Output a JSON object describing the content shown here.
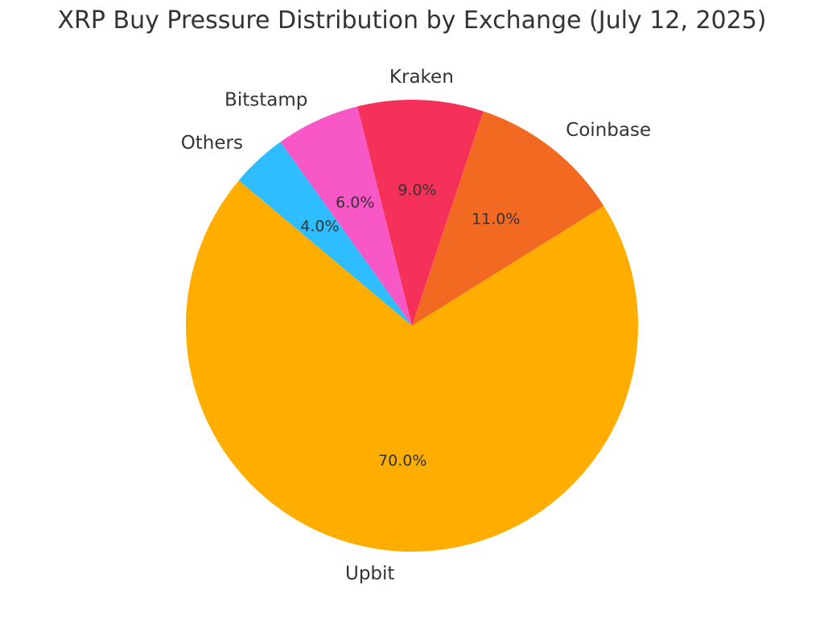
{
  "chart_data": {
    "type": "pie",
    "title": "XRP Buy Pressure Distribution by Exchange (July 12, 2025)",
    "categories": [
      "Upbit",
      "Coinbase",
      "Kraken",
      "Bitstamp",
      "Others"
    ],
    "values": [
      70.0,
      11.0,
      9.0,
      6.0,
      4.0
    ],
    "value_labels": [
      "70.0%",
      "11.0%",
      "9.0%",
      "6.0%",
      "4.0%"
    ],
    "colors": [
      "#FFAE00",
      "#F26A22",
      "#F5315A",
      "#F857C6",
      "#2EBDFF"
    ],
    "start_angle_deg": 140,
    "direction": "counterclockwise",
    "legend": "none"
  }
}
